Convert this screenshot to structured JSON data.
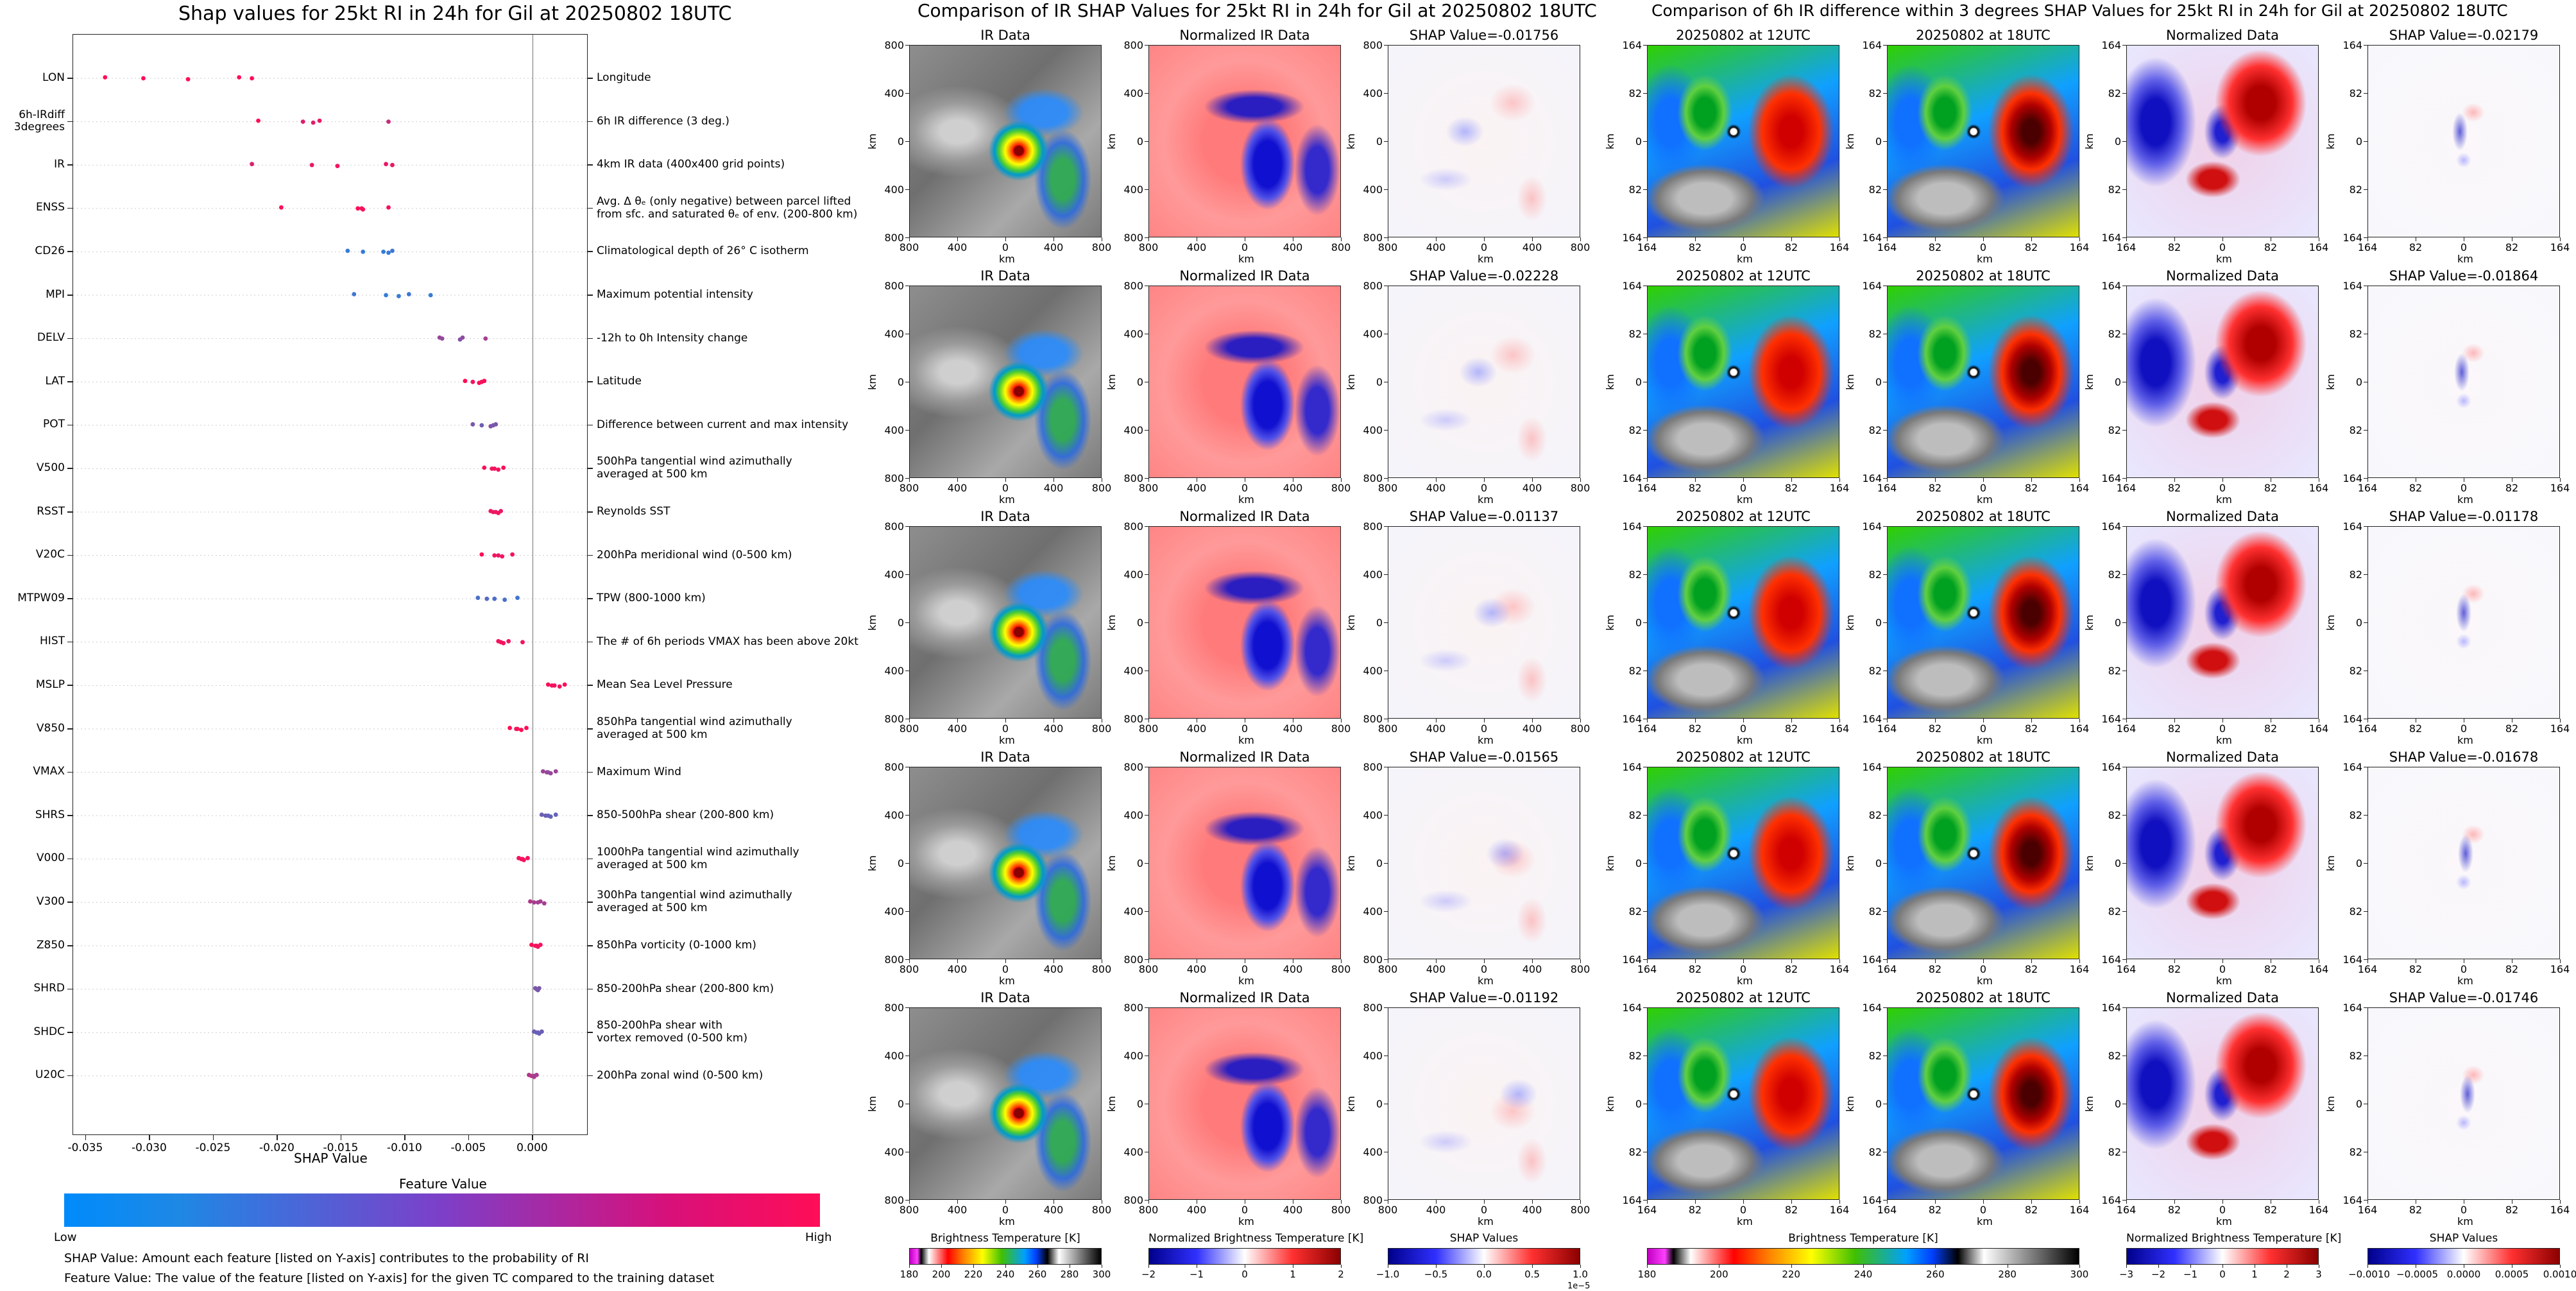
{
  "shap_plot": {
    "title": "Shap values for 25kt RI in 24h for Gil at 20250802 18UTC",
    "xlabel": "SHAP Value",
    "x_ticks": [
      "-0.035",
      "-0.030",
      "-0.025",
      "-0.020",
      "-0.015",
      "-0.010",
      "-0.005",
      "0.000"
    ],
    "colorbar_title": "Feature Value",
    "colorbar_low": "Low",
    "colorbar_high": "High",
    "note1": "SHAP Value: Amount each feature [listed on Y-axis] contributes to the probability of RI",
    "note2": "Feature Value: The value of the feature [listed on Y-axis] for the given TC compared to the training dataset",
    "features": [
      {
        "name": "LON",
        "desc": "Longitude",
        "points": [
          [
            -0.0335,
            1
          ],
          [
            -0.0305,
            1
          ],
          [
            -0.027,
            1
          ],
          [
            -0.023,
            1
          ],
          [
            -0.022,
            1
          ]
        ]
      },
      {
        "name": "6h-IRdiff\n3degrees",
        "desc": "6h IR difference (3 deg.)",
        "points": [
          [
            -0.0215,
            1
          ],
          [
            -0.018,
            0.85
          ],
          [
            -0.0172,
            0.85
          ],
          [
            -0.0167,
            0.9
          ],
          [
            -0.0113,
            0.75
          ]
        ]
      },
      {
        "name": "IR",
        "desc": "4km IR data (400x400 grid points)",
        "points": [
          [
            -0.022,
            0.85
          ],
          [
            -0.0173,
            0.9
          ],
          [
            -0.0153,
            0.95
          ],
          [
            -0.0115,
            0.9
          ],
          [
            -0.011,
            0.9
          ]
        ]
      },
      {
        "name": "ENSS",
        "desc": "Avg. Δ θₑ (only negative) between parcel lifted\nfrom sfc. and saturated θₑ of env. (200-800 km)",
        "points": [
          [
            -0.0197,
            1
          ],
          [
            -0.0137,
            1
          ],
          [
            -0.0133,
            1
          ],
          [
            -0.0113,
            0.95
          ],
          [
            -0.0134,
            0.95
          ]
        ]
      },
      {
        "name": "CD26",
        "desc": "Climatological depth of 26° C isotherm",
        "points": [
          [
            -0.0145,
            0.1
          ],
          [
            -0.0133,
            0.1
          ],
          [
            -0.0113,
            0.1
          ],
          [
            -0.011,
            0.15
          ],
          [
            -0.0117,
            0.1
          ]
        ]
      },
      {
        "name": "MPI",
        "desc": "Maximum potential intensity",
        "points": [
          [
            -0.014,
            0.15
          ],
          [
            -0.0115,
            0.1
          ],
          [
            -0.0105,
            0.1
          ],
          [
            -0.0097,
            0.15
          ],
          [
            -0.008,
            0.1
          ]
        ]
      },
      {
        "name": "DELV",
        "desc": "-12h to 0h Intensity change",
        "points": [
          [
            -0.0073,
            0.55
          ],
          [
            -0.0071,
            0.5
          ],
          [
            -0.0057,
            0.45
          ],
          [
            -0.0055,
            0.5
          ],
          [
            -0.0037,
            0.6
          ]
        ]
      },
      {
        "name": "LAT",
        "desc": "Latitude",
        "points": [
          [
            -0.0053,
            1
          ],
          [
            -0.0047,
            0.95
          ],
          [
            -0.0042,
            1
          ],
          [
            -0.0038,
            1
          ],
          [
            -0.004,
            0.95
          ]
        ]
      },
      {
        "name": "POT",
        "desc": "Difference between current and max intensity",
        "points": [
          [
            -0.0047,
            0.4
          ],
          [
            -0.004,
            0.35
          ],
          [
            -0.0033,
            0.45
          ],
          [
            -0.0029,
            0.4
          ],
          [
            -0.0031,
            0.4
          ]
        ]
      },
      {
        "name": "V500",
        "desc": "500hPa tangential wind azimuthally\naveraged at 500 km",
        "points": [
          [
            -0.0038,
            1
          ],
          [
            -0.0032,
            0.95
          ],
          [
            -0.0027,
            0.95
          ],
          [
            -0.0023,
            1
          ],
          [
            -0.003,
            0.95
          ]
        ]
      },
      {
        "name": "RSST",
        "desc": "Reynolds SST",
        "points": [
          [
            -0.0033,
            0.95
          ],
          [
            -0.0029,
            0.9
          ],
          [
            -0.0027,
            0.95
          ],
          [
            -0.0025,
            0.9
          ],
          [
            -0.0031,
            0.9
          ]
        ]
      },
      {
        "name": "V20C",
        "desc": "200hPa meridional wind (0-500 km)",
        "points": [
          [
            -0.004,
            1
          ],
          [
            -0.003,
            0.95
          ],
          [
            -0.0024,
            0.95
          ],
          [
            -0.0016,
            0.95
          ],
          [
            -0.0027,
            0.9
          ]
        ]
      },
      {
        "name": "MTPW09",
        "desc": "TPW (800-1000 km)",
        "points": [
          [
            -0.0043,
            0.2
          ],
          [
            -0.0036,
            0.25
          ],
          [
            -0.0022,
            0.2
          ],
          [
            -0.0012,
            0.15
          ],
          [
            -0.003,
            0.2
          ]
        ]
      },
      {
        "name": "HIST",
        "desc": "The # of 6h periods VMAX has been above 20kt",
        "points": [
          [
            -0.0027,
            0.95
          ],
          [
            -0.0025,
            0.95
          ],
          [
            -0.0023,
            0.95
          ],
          [
            -0.0019,
            0.95
          ],
          [
            -0.0008,
            0.95
          ]
        ]
      },
      {
        "name": "MSLP",
        "desc": "Mean Sea Level Pressure",
        "points": [
          [
            0.0012,
            1
          ],
          [
            0.0017,
            0.95
          ],
          [
            0.0021,
            0.95
          ],
          [
            0.0025,
            1
          ],
          [
            0.0015,
            0.95
          ]
        ]
      },
      {
        "name": "V850",
        "desc": "850hPa tangential wind azimuthally\naveraged at 500 km",
        "points": [
          [
            -0.0018,
            1
          ],
          [
            -0.0012,
            1
          ],
          [
            -0.0009,
            1
          ],
          [
            -0.0005,
            1
          ],
          [
            -0.0013,
            0.95
          ]
        ]
      },
      {
        "name": "VMAX",
        "desc": "Maximum Wind",
        "points": [
          [
            0.0008,
            0.55
          ],
          [
            0.0011,
            0.55
          ],
          [
            0.0014,
            0.55
          ],
          [
            0.0018,
            0.55
          ],
          [
            0.0012,
            0.5
          ]
        ]
      },
      {
        "name": "SHRS",
        "desc": "850-500hPa shear (200-800 km)",
        "points": [
          [
            0.0007,
            0.35
          ],
          [
            0.001,
            0.35
          ],
          [
            0.0014,
            0.3
          ],
          [
            0.0018,
            0.3
          ],
          [
            0.0012,
            0.3
          ]
        ]
      },
      {
        "name": "V000",
        "desc": "1000hPa tangential wind azimuthally\naveraged at 500 km",
        "points": [
          [
            -0.0011,
            0.95
          ],
          [
            -0.0009,
            0.95
          ],
          [
            -0.0007,
            0.95
          ],
          [
            -0.0004,
            0.95
          ],
          [
            -0.0008,
            0.95
          ]
        ]
      },
      {
        "name": "V300",
        "desc": "300hPa tangential wind azimuthally\naveraged at 500 km",
        "points": [
          [
            -0.0002,
            0.65
          ],
          [
            0.0004,
            0.6
          ],
          [
            0.0009,
            0.6
          ],
          [
            0.0006,
            0.6
          ],
          [
            0.0001,
            0.6
          ]
        ]
      },
      {
        "name": "Z850",
        "desc": "850hPa vorticity (0-1000 km)",
        "points": [
          [
            -0.0001,
            1
          ],
          [
            0.0002,
            0.95
          ],
          [
            0.0004,
            0.9
          ],
          [
            0.0006,
            0.95
          ],
          [
            0.0003,
            0.95
          ]
        ]
      },
      {
        "name": "SHRD",
        "desc": "850-200hPa shear (200-800 km)",
        "points": [
          [
            0.0002,
            0.4
          ],
          [
            0.0003,
            0.45
          ],
          [
            0.0004,
            0.4
          ],
          [
            0.0005,
            0.4
          ],
          [
            0.0003,
            0.4
          ]
        ]
      },
      {
        "name": "SHDC",
        "desc": "850-200hPa shear with\nvortex removed (0-500 km)",
        "points": [
          [
            0.0001,
            0.35
          ],
          [
            0.0003,
            0.35
          ],
          [
            0.0005,
            0.35
          ],
          [
            0.0007,
            0.35
          ],
          [
            0.0004,
            0.3
          ]
        ]
      },
      {
        "name": "U20C",
        "desc": "200hPa zonal wind (0-500 km)",
        "points": [
          [
            -0.0003,
            0.65
          ],
          [
            -0.0001,
            0.7
          ],
          [
            0.0001,
            0.65
          ],
          [
            0.0003,
            0.6
          ],
          [
            0.0001,
            0.6
          ]
        ]
      }
    ]
  },
  "ir_grid": {
    "title": "Comparison of IR SHAP Values for 25kt RI in 24h for Gil at 20250802 18UTC",
    "col_titles": [
      "IR Data",
      "Normalized IR Data"
    ],
    "shap_titles": [
      "SHAP Value=-0.01756",
      "SHAP Value=-0.02228",
      "SHAP Value=-0.01137",
      "SHAP Value=-0.01565",
      "SHAP Value=-0.01192"
    ],
    "y_ticks": [
      "800",
      "400",
      "0",
      "400",
      "800"
    ],
    "x_ticks": [
      "800",
      "400",
      "0",
      "400",
      "800"
    ],
    "axis_label": "km",
    "cbars": [
      {
        "label": "Brightness Temperature [K]",
        "ticks": [
          "180",
          "200",
          "220",
          "240",
          "260",
          "280",
          "300"
        ]
      },
      {
        "label": "Normalized Brightness Temperature [K]",
        "ticks": [
          "−2",
          "−1",
          "0",
          "1",
          "2"
        ]
      },
      {
        "label": "SHAP Values",
        "ticks": [
          "−1.0",
          "−0.5",
          "0.0",
          "0.5",
          "1.0"
        ],
        "exp": "1e−5"
      }
    ]
  },
  "diff_grid": {
    "title": "Comparison of 6h IR difference within 3 degrees SHAP Values for 25kt RI in 24h for Gil at 20250802 18UTC",
    "col_titles": [
      "20250802 at 12UTC",
      "20250802 at 18UTC",
      "Normalized Data"
    ],
    "shap_titles": [
      "SHAP Value=-0.02179",
      "SHAP Value=-0.01864",
      "SHAP Value=-0.01178",
      "SHAP Value=-0.01678",
      "SHAP Value=-0.01746"
    ],
    "y_ticks": [
      "164",
      "82",
      "0",
      "82",
      "164"
    ],
    "x_ticks": [
      "164",
      "82",
      "0",
      "82",
      "164"
    ],
    "axis_label": "km",
    "cbars": [
      {
        "label": "Brightness Temperature [K]",
        "ticks": [
          "180",
          "200",
          "220",
          "240",
          "260",
          "280",
          "300"
        ]
      },
      {
        "label": "Normalized Brightness Temperature [K]",
        "ticks": [
          "−3",
          "−2",
          "−1",
          "0",
          "1",
          "2",
          "3"
        ]
      },
      {
        "label": "SHAP Values",
        "ticks": [
          "−0.0010",
          "−0.0005",
          "0.0000",
          "0.0005",
          "0.0010"
        ]
      }
    ]
  },
  "chart_data": [
    {
      "type": "scatter",
      "title": "Shap values for 25kt RI in 24h for Gil at 20250802 18UTC",
      "xlabel": "SHAP Value",
      "xlim": [
        -0.036,
        0.0042
      ],
      "categories": [
        "LON",
        "6h-IRdiff 3degrees",
        "IR",
        "ENSS",
        "CD26",
        "MPI",
        "DELV",
        "LAT",
        "POT",
        "V500",
        "RSST",
        "V20C",
        "MTPW09",
        "HIST",
        "MSLP",
        "V850",
        "VMAX",
        "SHRS",
        "V000",
        "V300",
        "Z850",
        "SHRD",
        "SHDC",
        "U20C"
      ],
      "color_scale": {
        "low": "#1e88e5",
        "high": "#ff0d57"
      }
    }
  ],
  "colors": {
    "low": "#1e88e5",
    "high": "#ff0d57",
    "frame": "#222222"
  }
}
